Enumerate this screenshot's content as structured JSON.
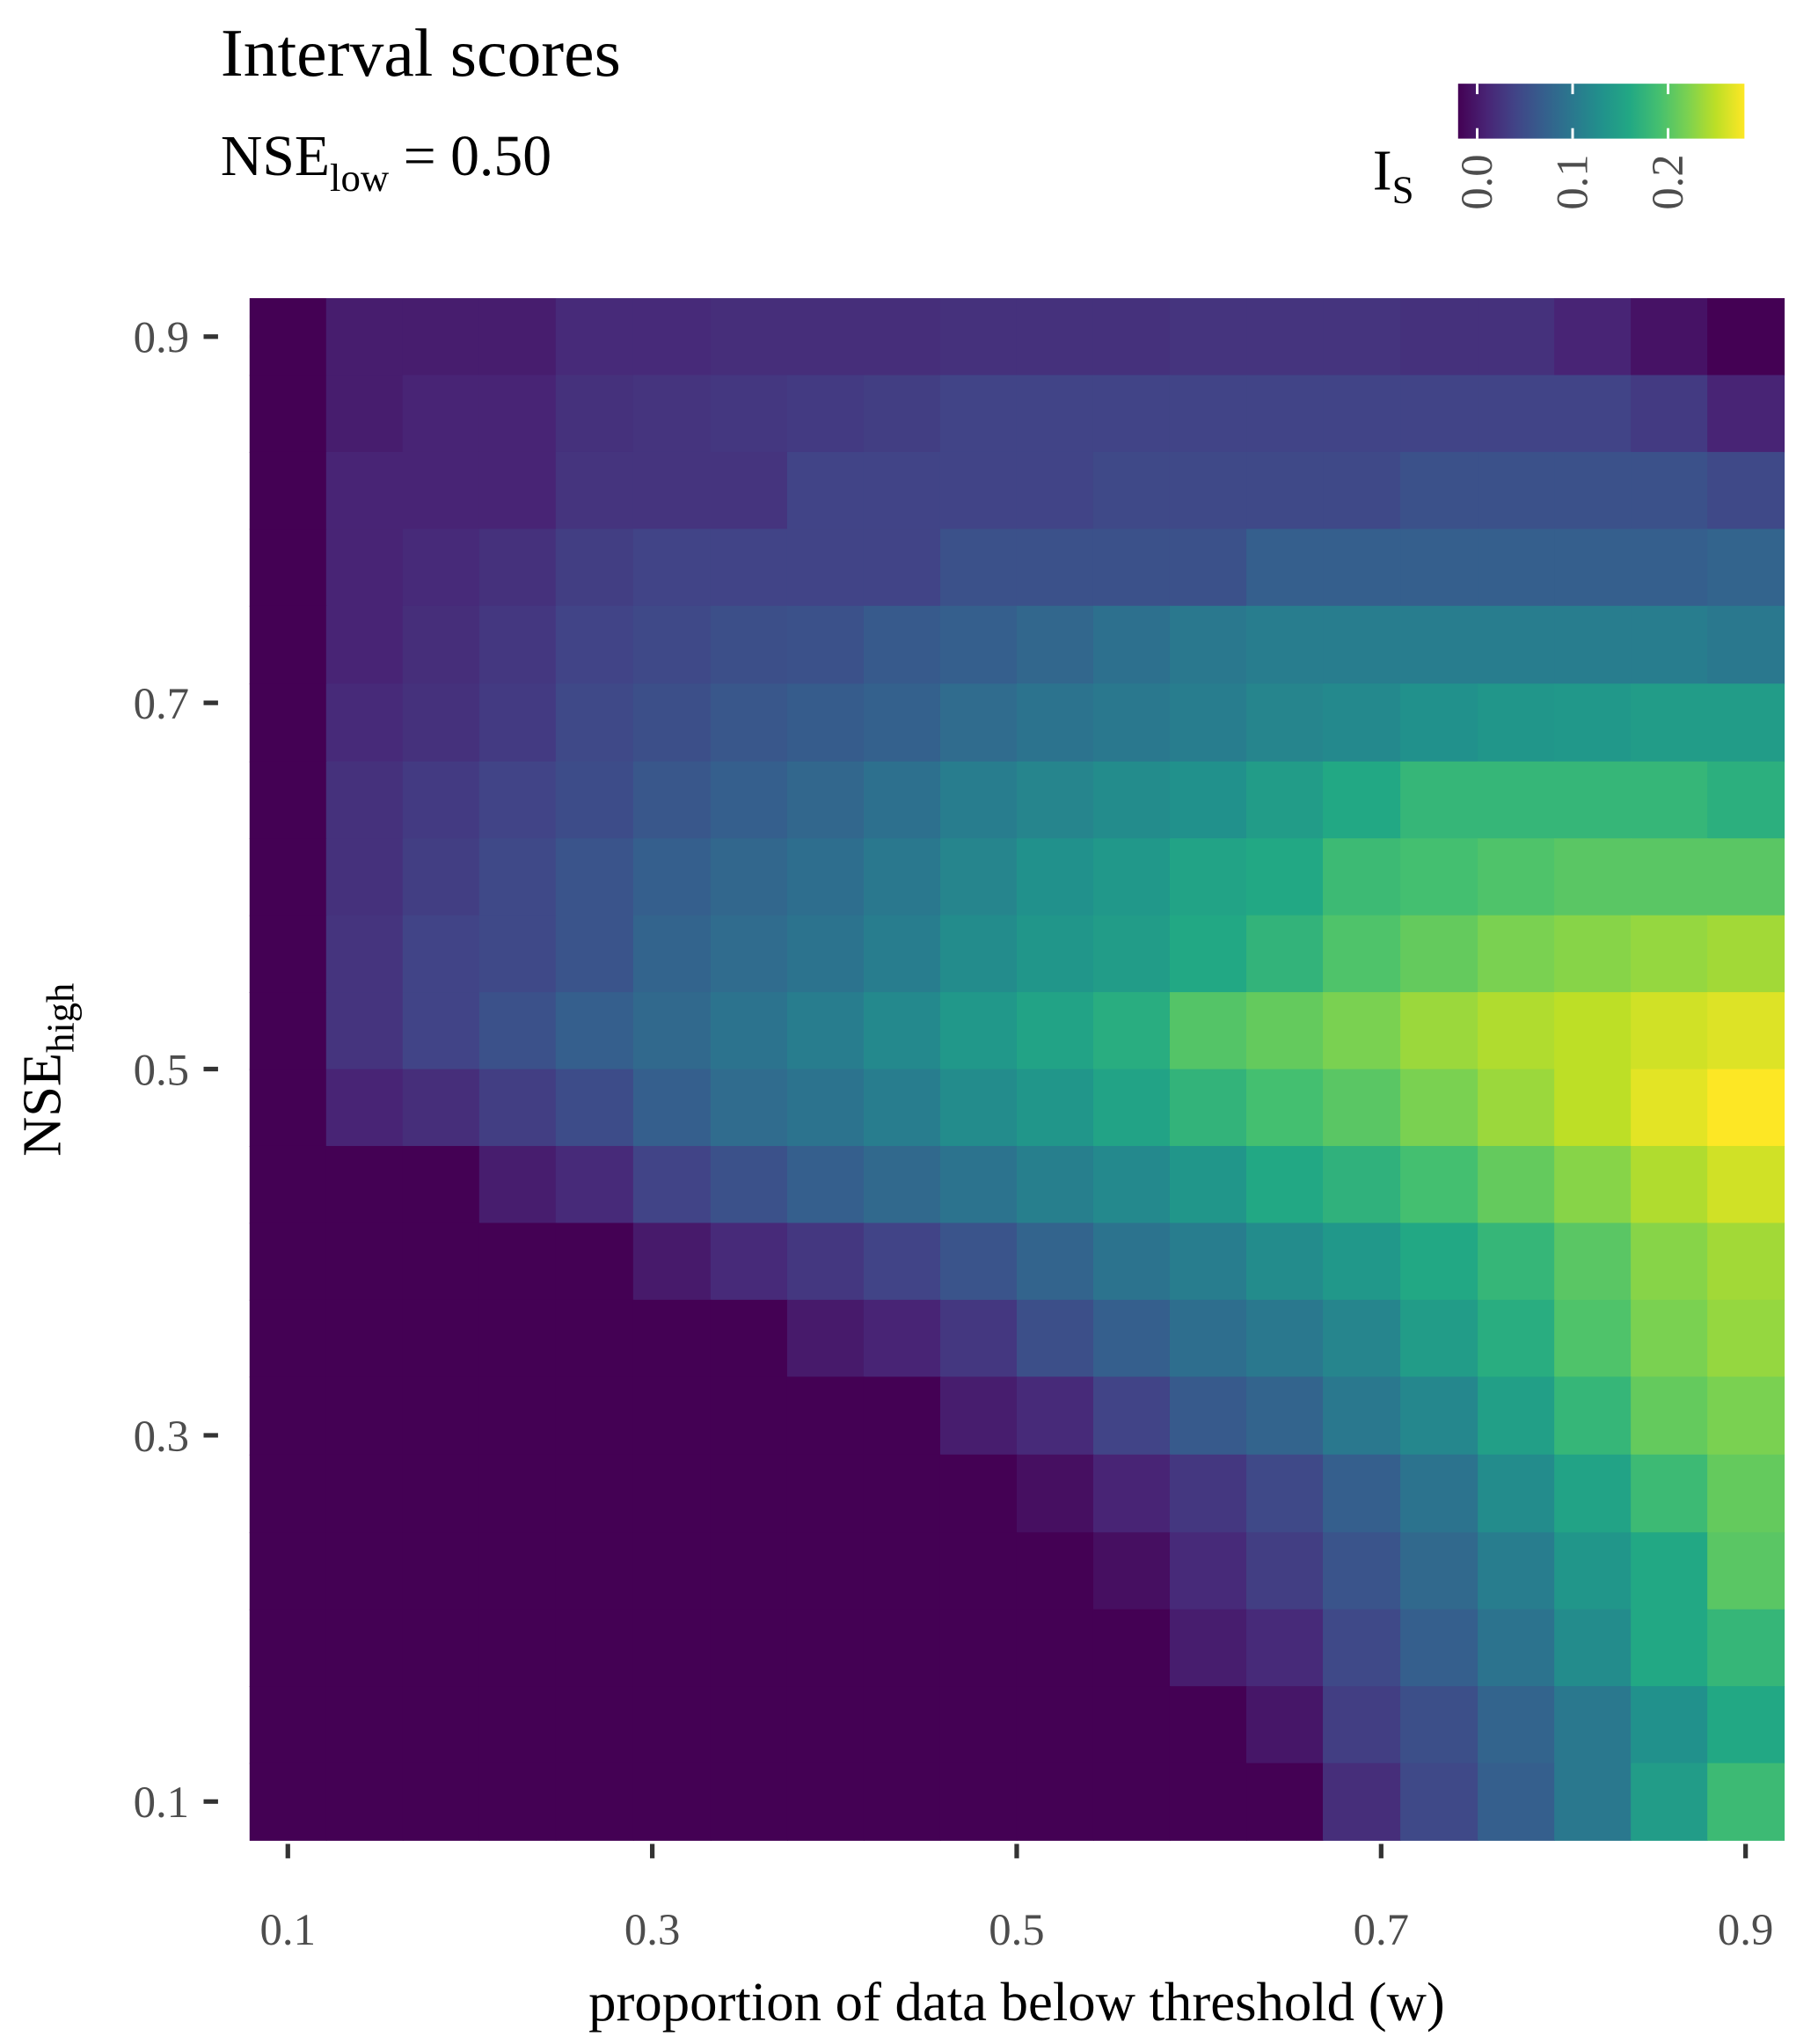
{
  "chart_data": {
    "type": "heatmap",
    "title": "Interval scores",
    "subtitle": {
      "main": "NSE",
      "sub": "low",
      "rest": " =  0.50"
    },
    "x_label": "proportion of data below threshold (w)",
    "y_label": {
      "main": "NSE",
      "sub": "high"
    },
    "legend_title": {
      "main": "I",
      "sub": "S"
    },
    "colormap": "viridis",
    "clim": [
      -0.02,
      0.28
    ],
    "cticks": [
      {
        "value": 0,
        "label": "0.0"
      },
      0.1,
      0.2
    ],
    "xlim": [
      0.079,
      0.921
    ],
    "ylim": [
      0.079,
      0.921
    ],
    "xticks": [
      0.1,
      0.3,
      0.5,
      0.7,
      0.9
    ],
    "yticks": [
      0.1,
      0.3,
      0.5,
      0.7,
      0.9
    ],
    "xminor": [
      0.2,
      0.4,
      0.6,
      0.8
    ],
    "yminor": [
      0.2,
      0.4,
      0.6,
      0.8
    ],
    "grid": true,
    "x": [
      0.1,
      0.142,
      0.184,
      0.226,
      0.268,
      0.311,
      0.353,
      0.395,
      0.437,
      0.479,
      0.521,
      0.563,
      0.605,
      0.647,
      0.689,
      0.732,
      0.774,
      0.816,
      0.858,
      0.9
    ],
    "y": [
      0.9,
      0.858,
      0.816,
      0.774,
      0.732,
      0.689,
      0.647,
      0.605,
      0.563,
      0.521,
      0.479,
      0.437,
      0.395,
      0.353,
      0.311,
      0.268,
      0.226,
      0.184,
      0.142,
      0.1
    ],
    "z": [
      [
        -0.02,
        0.004,
        0.004,
        0.004,
        0.016,
        0.016,
        0.019,
        0.019,
        0.019,
        0.022,
        0.022,
        0.022,
        0.025,
        0.025,
        0.025,
        0.022,
        0.022,
        0.01,
        -0.005,
        -0.02
      ],
      [
        -0.02,
        0.004,
        0.01,
        0.01,
        0.022,
        0.025,
        0.028,
        0.031,
        0.034,
        0.04,
        0.04,
        0.04,
        0.04,
        0.04,
        0.04,
        0.04,
        0.04,
        0.04,
        0.031,
        0.01
      ],
      [
        -0.02,
        0.01,
        0.01,
        0.01,
        0.025,
        0.025,
        0.025,
        0.04,
        0.04,
        0.04,
        0.04,
        0.046,
        0.046,
        0.046,
        0.046,
        0.055,
        0.055,
        0.055,
        0.055,
        0.046
      ],
      [
        -0.02,
        0.01,
        0.016,
        0.022,
        0.034,
        0.04,
        0.04,
        0.04,
        0.04,
        0.055,
        0.055,
        0.055,
        0.055,
        0.07,
        0.07,
        0.07,
        0.07,
        0.07,
        0.07,
        0.076
      ],
      [
        -0.02,
        0.01,
        0.019,
        0.028,
        0.04,
        0.046,
        0.052,
        0.055,
        0.064,
        0.07,
        0.079,
        0.091,
        0.1,
        0.106,
        0.106,
        0.106,
        0.106,
        0.106,
        0.106,
        0.1
      ],
      [
        -0.02,
        0.016,
        0.022,
        0.031,
        0.046,
        0.052,
        0.061,
        0.067,
        0.073,
        0.085,
        0.094,
        0.1,
        0.106,
        0.115,
        0.121,
        0.13,
        0.136,
        0.139,
        0.145,
        0.145
      ],
      [
        -0.02,
        0.022,
        0.031,
        0.04,
        0.049,
        0.061,
        0.07,
        0.079,
        0.091,
        0.106,
        0.115,
        0.124,
        0.13,
        0.145,
        0.16,
        0.178,
        0.178,
        0.178,
        0.178,
        0.169
      ],
      [
        -0.02,
        0.022,
        0.034,
        0.046,
        0.058,
        0.07,
        0.079,
        0.088,
        0.1,
        0.115,
        0.13,
        0.139,
        0.154,
        0.16,
        0.184,
        0.19,
        0.196,
        0.202,
        0.202,
        0.202
      ],
      [
        -0.02,
        0.025,
        0.04,
        0.046,
        0.058,
        0.076,
        0.085,
        0.094,
        0.106,
        0.124,
        0.136,
        0.145,
        0.16,
        0.175,
        0.196,
        0.208,
        0.22,
        0.226,
        0.232,
        0.238
      ],
      [
        -0.02,
        0.025,
        0.04,
        0.055,
        0.07,
        0.082,
        0.094,
        0.106,
        0.121,
        0.139,
        0.154,
        0.166,
        0.199,
        0.208,
        0.22,
        0.235,
        0.244,
        0.25,
        0.259,
        0.265
      ],
      [
        -0.02,
        0.01,
        0.019,
        0.034,
        0.049,
        0.07,
        0.085,
        0.094,
        0.106,
        0.124,
        0.136,
        0.154,
        0.175,
        0.19,
        0.202,
        0.22,
        0.235,
        0.25,
        0.268,
        0.28
      ],
      [
        -0.02,
        -0.02,
        -0.02,
        0.004,
        0.016,
        0.04,
        0.055,
        0.07,
        0.082,
        0.094,
        0.109,
        0.121,
        0.136,
        0.16,
        0.172,
        0.19,
        0.208,
        0.226,
        0.244,
        0.259
      ],
      [
        -0.02,
        -0.02,
        -0.02,
        -0.02,
        -0.02,
        0.001,
        0.016,
        0.028,
        0.04,
        0.058,
        0.076,
        0.094,
        0.106,
        0.124,
        0.139,
        0.16,
        0.178,
        0.202,
        0.226,
        0.238
      ],
      [
        -0.02,
        -0.02,
        -0.02,
        -0.02,
        -0.02,
        -0.02,
        -0.02,
        0.001,
        0.01,
        0.028,
        0.052,
        0.07,
        0.088,
        0.1,
        0.115,
        0.145,
        0.166,
        0.196,
        0.22,
        0.232
      ],
      [
        -0.02,
        -0.02,
        -0.02,
        -0.02,
        -0.02,
        -0.02,
        -0.02,
        -0.02,
        -0.02,
        0.004,
        0.016,
        0.04,
        0.064,
        0.076,
        0.1,
        0.118,
        0.148,
        0.178,
        0.208,
        0.22
      ],
      [
        -0.02,
        -0.02,
        -0.02,
        -0.02,
        -0.02,
        -0.02,
        -0.02,
        -0.02,
        -0.02,
        -0.02,
        -0.008,
        0.01,
        0.028,
        0.046,
        0.07,
        0.094,
        0.124,
        0.154,
        0.184,
        0.208
      ],
      [
        -0.02,
        -0.02,
        -0.02,
        -0.02,
        -0.02,
        -0.02,
        -0.02,
        -0.02,
        -0.02,
        -0.02,
        -0.02,
        -0.008,
        0.016,
        0.034,
        0.058,
        0.082,
        0.106,
        0.136,
        0.16,
        0.202
      ],
      [
        -0.02,
        -0.02,
        -0.02,
        -0.02,
        -0.02,
        -0.02,
        -0.02,
        -0.02,
        -0.02,
        -0.02,
        -0.02,
        -0.02,
        0.004,
        0.016,
        0.046,
        0.07,
        0.094,
        0.124,
        0.16,
        0.178
      ],
      [
        -0.02,
        -0.02,
        -0.02,
        -0.02,
        -0.02,
        -0.02,
        -0.02,
        -0.02,
        -0.02,
        -0.02,
        -0.02,
        -0.02,
        -0.02,
        -0.002,
        0.034,
        0.052,
        0.076,
        0.1,
        0.13,
        0.16
      ],
      [
        -0.02,
        -0.02,
        -0.02,
        -0.02,
        -0.02,
        -0.02,
        -0.02,
        -0.02,
        -0.02,
        -0.02,
        -0.02,
        -0.02,
        -0.02,
        -0.02,
        0.019,
        0.046,
        0.07,
        0.1,
        0.145,
        0.184
      ]
    ]
  }
}
